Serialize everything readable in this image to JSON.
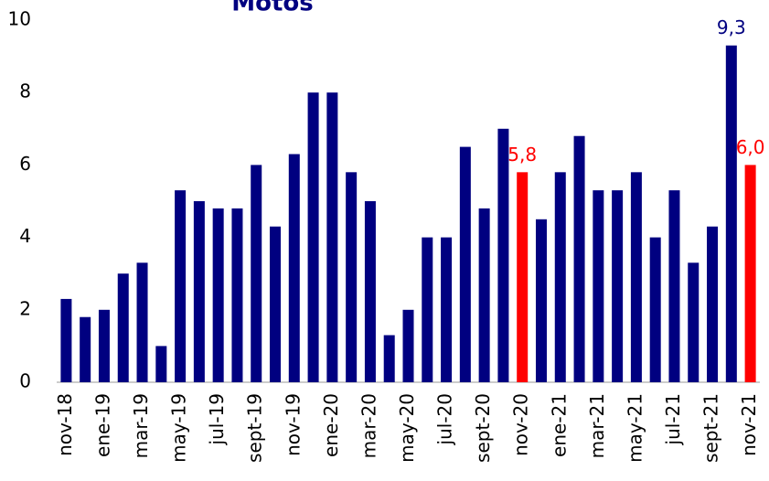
{
  "chart_data": {
    "type": "bar",
    "title": "Motos",
    "categories": [
      "nov-18",
      null,
      "ene-19",
      null,
      "mar-19",
      null,
      "may-19",
      null,
      "jul-19",
      null,
      "sept-19",
      null,
      "nov-19",
      null,
      "ene-20",
      null,
      "mar-20",
      null,
      "may-20",
      null,
      "jul-20",
      null,
      "sept-20",
      null,
      "nov-20",
      null,
      "ene-21",
      null,
      "mar-21",
      null,
      "may-21",
      null,
      "jul-21",
      null,
      "sept-21",
      null,
      "nov-21"
    ],
    "values": [
      2.3,
      1.8,
      2.0,
      3.0,
      3.3,
      1.0,
      5.3,
      5.0,
      4.8,
      4.8,
      6.0,
      4.3,
      6.3,
      8.0,
      8.0,
      5.8,
      5.0,
      1.3,
      2.0,
      4.0,
      4.0,
      6.5,
      4.8,
      7.0,
      5.8,
      4.5,
      5.8,
      6.8,
      5.3,
      5.3,
      5.8,
      4.0,
      5.3,
      3.3,
      4.3,
      9.3,
      6.0
    ],
    "value_labels": [
      null,
      null,
      null,
      null,
      null,
      null,
      null,
      null,
      null,
      null,
      null,
      null,
      null,
      null,
      null,
      null,
      null,
      null,
      null,
      null,
      null,
      null,
      null,
      null,
      "5,8",
      null,
      null,
      null,
      null,
      null,
      null,
      null,
      null,
      null,
      null,
      "9,3",
      "6,0"
    ],
    "colors": [
      "#000080",
      "#000080",
      "#000080",
      "#000080",
      "#000080",
      "#000080",
      "#000080",
      "#000080",
      "#000080",
      "#000080",
      "#000080",
      "#000080",
      "#000080",
      "#000080",
      "#000080",
      "#000080",
      "#000080",
      "#000080",
      "#000080",
      "#000080",
      "#000080",
      "#000080",
      "#000080",
      "#000080",
      "#ff0000",
      "#000080",
      "#000080",
      "#000080",
      "#000080",
      "#000080",
      "#000080",
      "#000080",
      "#000080",
      "#000080",
      "#000080",
      "#000080",
      "#ff0000"
    ],
    "ylim": [
      0,
      10
    ],
    "yticks": [
      0,
      2,
      4,
      6,
      8,
      10
    ],
    "grid": false
  }
}
